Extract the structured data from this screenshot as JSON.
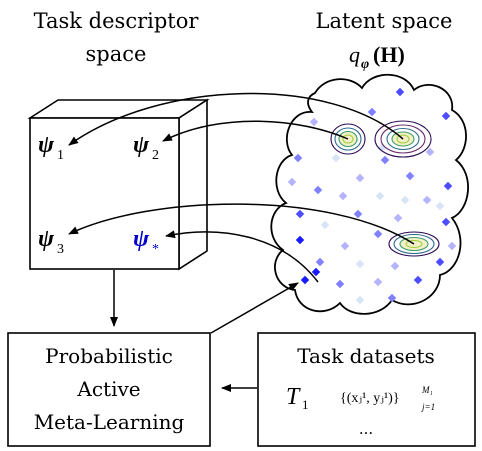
{
  "header": {
    "task_space_line1": "Task descriptor",
    "task_space_line2": "space",
    "latent_line1": "Latent space",
    "latent_line2": "q",
    "latent_sub": "φ",
    "latent_arg": "(H)"
  },
  "cube": {
    "psi": "ψ",
    "labels": [
      {
        "id": "psi-1",
        "sub": "1",
        "color": "#000000"
      },
      {
        "id": "psi-2",
        "sub": "2",
        "color": "#000000"
      },
      {
        "id": "psi-3",
        "sub": "3",
        "color": "#000000"
      },
      {
        "id": "psi-star",
        "sub": "*",
        "color": "#0000cc"
      }
    ]
  },
  "boxes": {
    "pal_line1": "Probabilistic",
    "pal_line2": "Active",
    "pal_line3": "Meta-Learning",
    "datasets_title": "Task datasets",
    "datasets_T": "T",
    "datasets_T_sub": "1",
    "datasets_formula": "{(x",
    "datasets_formula_full": "{(xⱼ¹, yⱼ¹)}",
    "datasets_sup": "M₁",
    "datasets_sub": "j=1",
    "datasets_ellipsis": "..."
  },
  "colors": {
    "star": "#0000cc",
    "cloud_points": [
      "#1a1aff",
      "#4d4dff",
      "#8080ff",
      "#b3b3ff",
      "#d6e4f5"
    ]
  }
}
